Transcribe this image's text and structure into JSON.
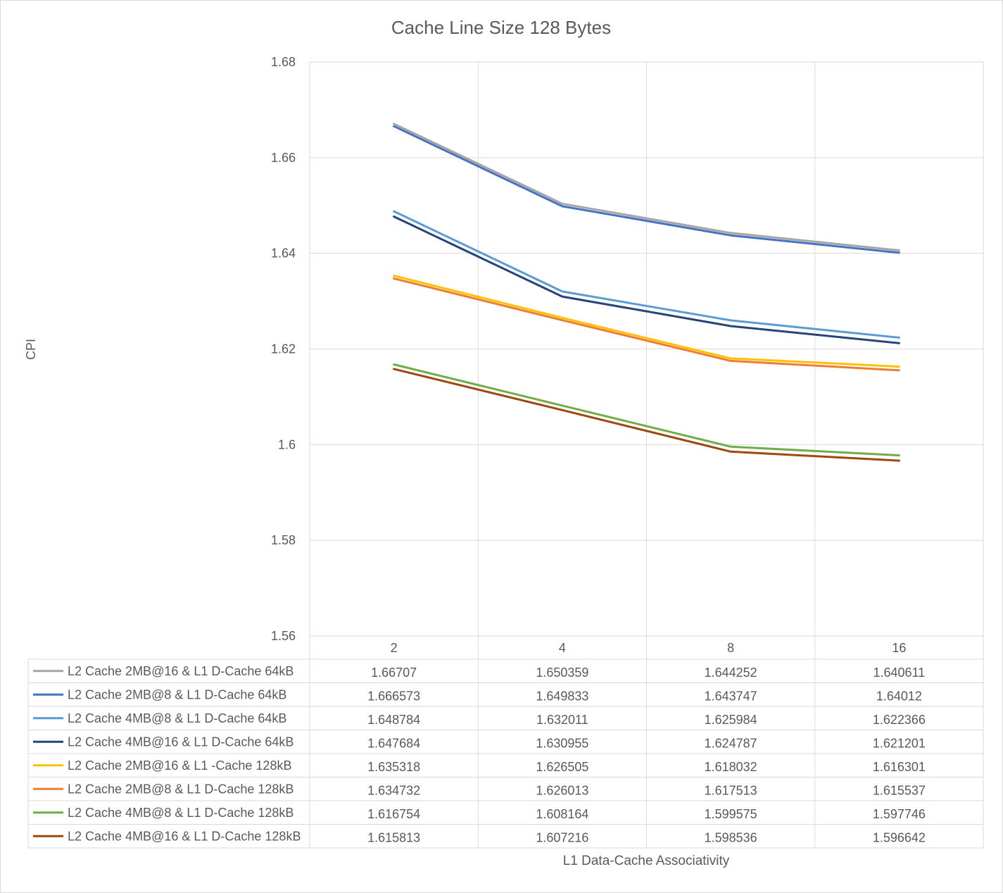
{
  "chart_data": {
    "type": "line",
    "title": "Cache Line Size 128 Bytes",
    "xlabel": "L1 Data-Cache Associativity",
    "ylabel": "CPI",
    "categories": [
      "2",
      "4",
      "8",
      "16"
    ],
    "ylim": [
      1.56,
      1.68
    ],
    "yticks": [
      "1.56",
      "1.58",
      "1.6",
      "1.62",
      "1.64",
      "1.66",
      "1.68"
    ],
    "grid": true,
    "legend": "data-table-below",
    "series": [
      {
        "name": "L2 Cache 2MB@16 & L1 D-Cache 64kB",
        "color": "#a5a5a5",
        "values": [
          1.66707,
          1.650359,
          1.644252,
          1.640611
        ],
        "labels": [
          "1.66707",
          "1.650359",
          "1.644252",
          "1.640611"
        ]
      },
      {
        "name": "L2 Cache 2MB@8 & L1 D-Cache 64kB",
        "color": "#4472c4",
        "values": [
          1.666573,
          1.649833,
          1.643747,
          1.64012
        ],
        "labels": [
          "1.666573",
          "1.649833",
          "1.643747",
          "1.64012"
        ]
      },
      {
        "name": "L2 Cache 4MB@8 & L1 D-Cache 64kB",
        "color": "#5b9bd5",
        "values": [
          1.648784,
          1.632011,
          1.625984,
          1.622366
        ],
        "labels": [
          "1.648784",
          "1.632011",
          "1.625984",
          "1.622366"
        ]
      },
      {
        "name": "L2 Cache 4MB@16 & L1 D-Cache 64kB",
        "color": "#264478",
        "values": [
          1.647684,
          1.630955,
          1.624787,
          1.621201
        ],
        "labels": [
          "1.647684",
          "1.630955",
          "1.624787",
          "1.621201"
        ]
      },
      {
        "name": "L2 Cache 2MB@16 & L1 -Cache 128kB",
        "color": "#ffc000",
        "values": [
          1.635318,
          1.626505,
          1.618032,
          1.616301
        ],
        "labels": [
          "1.635318",
          "1.626505",
          "1.618032",
          "1.616301"
        ]
      },
      {
        "name": "L2 Cache 2MB@8 & L1 D-Cache 128kB",
        "color": "#ed7d31",
        "values": [
          1.634732,
          1.626013,
          1.617513,
          1.615537
        ],
        "labels": [
          "1.634732",
          "1.626013",
          "1.617513",
          "1.615537"
        ]
      },
      {
        "name": "L2 Cache 4MB@8 & L1 D-Cache 128kB",
        "color": "#70ad47",
        "values": [
          1.616754,
          1.608164,
          1.599575,
          1.597746
        ],
        "labels": [
          "1.616754",
          "1.608164",
          "1.599575",
          "1.597746"
        ]
      },
      {
        "name": "L2 Cache 4MB@16 & L1 D-Cache 128kB",
        "color": "#9e480e",
        "values": [
          1.615813,
          1.607216,
          1.598536,
          1.596642
        ],
        "labels": [
          "1.615813",
          "1.607216",
          "1.598536",
          "1.596642"
        ]
      }
    ]
  }
}
